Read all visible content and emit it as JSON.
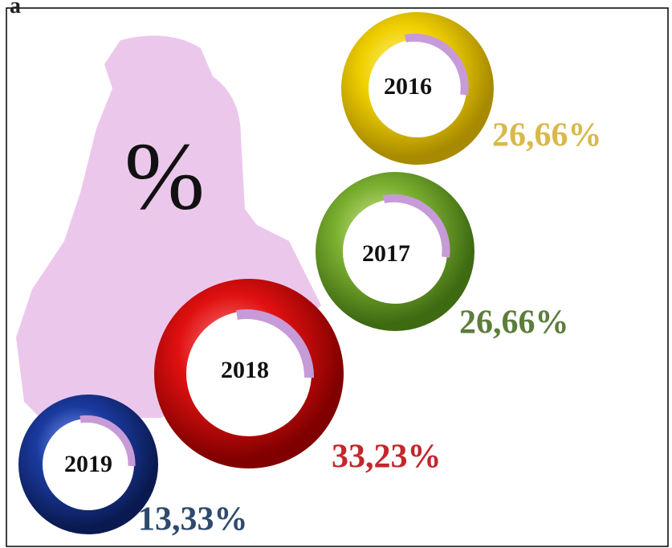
{
  "corner_text": "a",
  "symbol": "%",
  "items": [
    {
      "year": "2016",
      "percent": "26,66%"
    },
    {
      "year": "2017",
      "percent": "26,66%"
    },
    {
      "year": "2018",
      "percent": "33,23%"
    },
    {
      "year": "2019",
      "percent": "13,33%"
    }
  ]
}
